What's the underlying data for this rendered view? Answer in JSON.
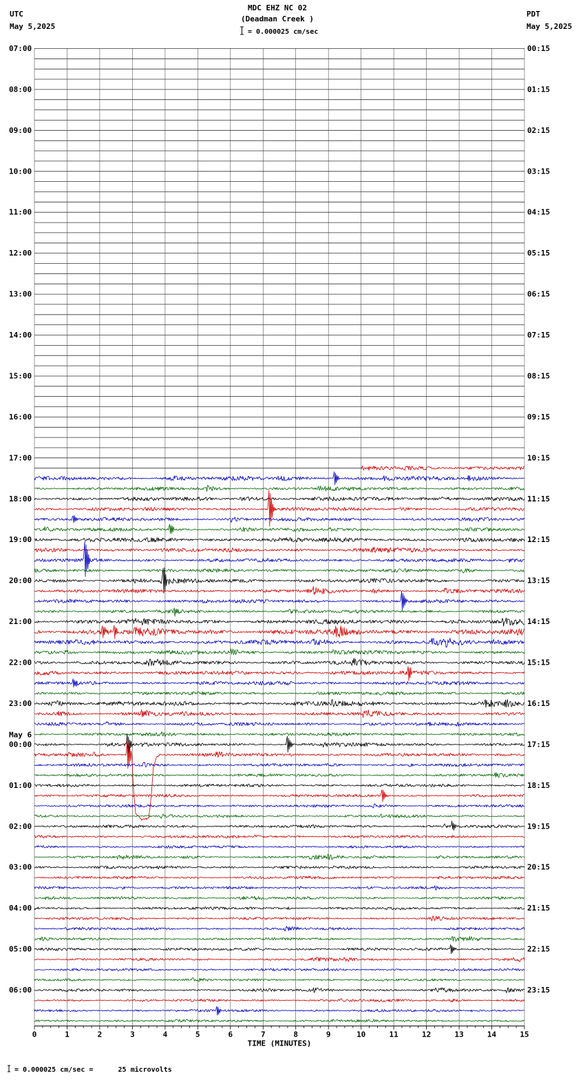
{
  "header": {
    "title": "MDC EHZ NC 02",
    "subtitle": "(Deadman Creek )",
    "scale_text": "= 0.000025 cm/sec",
    "left_tz": "UTC",
    "left_date": "May 5,2025",
    "right_tz": "PDT",
    "right_date": "May 5,2025"
  },
  "footer": {
    "note": "= 0.000025 cm/sec =      25 microvolts"
  },
  "chart_data": {
    "type": "line",
    "variant": "helicorder",
    "xlabel": "TIME (MINUTES)",
    "x_range": [
      0,
      15
    ],
    "x_ticks": [
      0,
      1,
      2,
      3,
      4,
      5,
      6,
      7,
      8,
      9,
      10,
      11,
      12,
      13,
      14,
      15
    ],
    "minutes_per_row": 15,
    "rows_total": 96,
    "color_cycle": [
      "black",
      "red",
      "blue",
      "green"
    ],
    "colors": {
      "black": "#000000",
      "red": "#cc0000",
      "blue": "#0000bb",
      "green": "#006600",
      "flat": "#333333",
      "grid": "#555555"
    },
    "data_start_row": 41,
    "first_data_row_start_minute": 10,
    "utc_hour_labels": [
      {
        "row": 0,
        "label": "07:00"
      },
      {
        "row": 4,
        "label": "08:00"
      },
      {
        "row": 8,
        "label": "09:00"
      },
      {
        "row": 12,
        "label": "10:00"
      },
      {
        "row": 16,
        "label": "11:00"
      },
      {
        "row": 20,
        "label": "12:00"
      },
      {
        "row": 24,
        "label": "13:00"
      },
      {
        "row": 28,
        "label": "14:00"
      },
      {
        "row": 32,
        "label": "15:00"
      },
      {
        "row": 36,
        "label": "16:00"
      },
      {
        "row": 40,
        "label": "17:00"
      },
      {
        "row": 44,
        "label": "18:00"
      },
      {
        "row": 48,
        "label": "19:00"
      },
      {
        "row": 52,
        "label": "20:00"
      },
      {
        "row": 56,
        "label": "21:00"
      },
      {
        "row": 60,
        "label": "22:00"
      },
      {
        "row": 64,
        "label": "23:00"
      },
      {
        "row": 68,
        "label": "00:00",
        "pre": "May 6"
      },
      {
        "row": 72,
        "label": "01:00"
      },
      {
        "row": 76,
        "label": "02:00"
      },
      {
        "row": 80,
        "label": "03:00"
      },
      {
        "row": 84,
        "label": "04:00"
      },
      {
        "row": 88,
        "label": "05:00"
      },
      {
        "row": 92,
        "label": "06:00"
      }
    ],
    "pdt_labels": [
      {
        "row": 0,
        "label": "00:15"
      },
      {
        "row": 4,
        "label": "01:15"
      },
      {
        "row": 8,
        "label": "02:15"
      },
      {
        "row": 12,
        "label": "03:15"
      },
      {
        "row": 16,
        "label": "04:15"
      },
      {
        "row": 20,
        "label": "05:15"
      },
      {
        "row": 24,
        "label": "06:15"
      },
      {
        "row": 28,
        "label": "07:15"
      },
      {
        "row": 32,
        "label": "08:15"
      },
      {
        "row": 36,
        "label": "09:15"
      },
      {
        "row": 40,
        "label": "10:15"
      },
      {
        "row": 44,
        "label": "11:15"
      },
      {
        "row": 48,
        "label": "12:15"
      },
      {
        "row": 52,
        "label": "13:15"
      },
      {
        "row": 56,
        "label": "14:15"
      },
      {
        "row": 60,
        "label": "15:15"
      },
      {
        "row": 64,
        "label": "16:15"
      },
      {
        "row": 68,
        "label": "17:15"
      },
      {
        "row": 72,
        "label": "18:15"
      },
      {
        "row": 76,
        "label": "19:15"
      },
      {
        "row": 80,
        "label": "20:15"
      },
      {
        "row": 84,
        "label": "21:15"
      },
      {
        "row": 88,
        "label": "22:15"
      },
      {
        "row": 92,
        "label": "23:15"
      }
    ],
    "amps": [
      0,
      0,
      0,
      0,
      0,
      0,
      0,
      0,
      0,
      0,
      0,
      0,
      0,
      0,
      0,
      0,
      0,
      0,
      0,
      0,
      0,
      0,
      0,
      0,
      0,
      0,
      0,
      0,
      0,
      0,
      0,
      0,
      0,
      0,
      0,
      0,
      0,
      0,
      0,
      0,
      0,
      2.5,
      2.1,
      1.7,
      2.0,
      1.8,
      1.8,
      1.7,
      2.2,
      2.0,
      1.8,
      1.7,
      2.1,
      1.8,
      1.8,
      1.7,
      2.4,
      3.0,
      2.3,
      2.0,
      2.1,
      2.0,
      1.8,
      1.7,
      2.2,
      2.0,
      1.7,
      1.5,
      1.6,
      1.6,
      1.5,
      1.4,
      1.5,
      1.4,
      1.4,
      1.3,
      1.5,
      1.4,
      1.3,
      1.3,
      1.5,
      1.4,
      1.3,
      1.3,
      1.4,
      1.3,
      1.3,
      1.2,
      1.4,
      1.3,
      1.3,
      1.2,
      1.4,
      1.3,
      1.3,
      1.3
    ],
    "events": [
      {
        "row": 42,
        "minute": 9.2,
        "amp": 9
      },
      {
        "row": 45,
        "minute": 7.2,
        "amp": 26
      },
      {
        "row": 46,
        "minute": 1.2,
        "amp": 6
      },
      {
        "row": 47,
        "minute": 4.15,
        "amp": 7
      },
      {
        "row": 50,
        "minute": 1.55,
        "amp": 26
      },
      {
        "row": 52,
        "minute": 3.95,
        "amp": 17
      },
      {
        "row": 54,
        "minute": 11.25,
        "amp": 13
      },
      {
        "row": 55,
        "minute": 4.3,
        "amp": 6
      },
      {
        "row": 57,
        "minute": 2.1,
        "amp": 7
      },
      {
        "row": 57,
        "minute": 2.45,
        "amp": 9
      },
      {
        "row": 61,
        "minute": 11.45,
        "amp": 11
      },
      {
        "row": 62,
        "minute": 1.2,
        "amp": 6
      },
      {
        "row": 65,
        "minute": 3.3,
        "amp": 6
      },
      {
        "row": 68,
        "minute": 2.85,
        "amp": 14
      },
      {
        "row": 68,
        "minute": 7.75,
        "amp": 11
      },
      {
        "row": 69,
        "minute": 2.85,
        "amp": 20
      },
      {
        "row": 73,
        "minute": 10.65,
        "amp": 9
      },
      {
        "row": 76,
        "minute": 12.8,
        "amp": 6
      },
      {
        "row": 88,
        "minute": 12.75,
        "amp": 6
      },
      {
        "row": 94,
        "minute": 5.6,
        "amp": 6
      }
    ],
    "dip_event": {
      "row": 69,
      "points": [
        [
          2.98,
          0
        ],
        [
          3.04,
          -55
        ],
        [
          3.1,
          -85
        ],
        [
          3.3,
          -95
        ],
        [
          3.5,
          -92
        ],
        [
          3.58,
          -60
        ],
        [
          3.64,
          -18
        ],
        [
          3.72,
          -5
        ],
        [
          3.84,
          0
        ]
      ]
    }
  }
}
